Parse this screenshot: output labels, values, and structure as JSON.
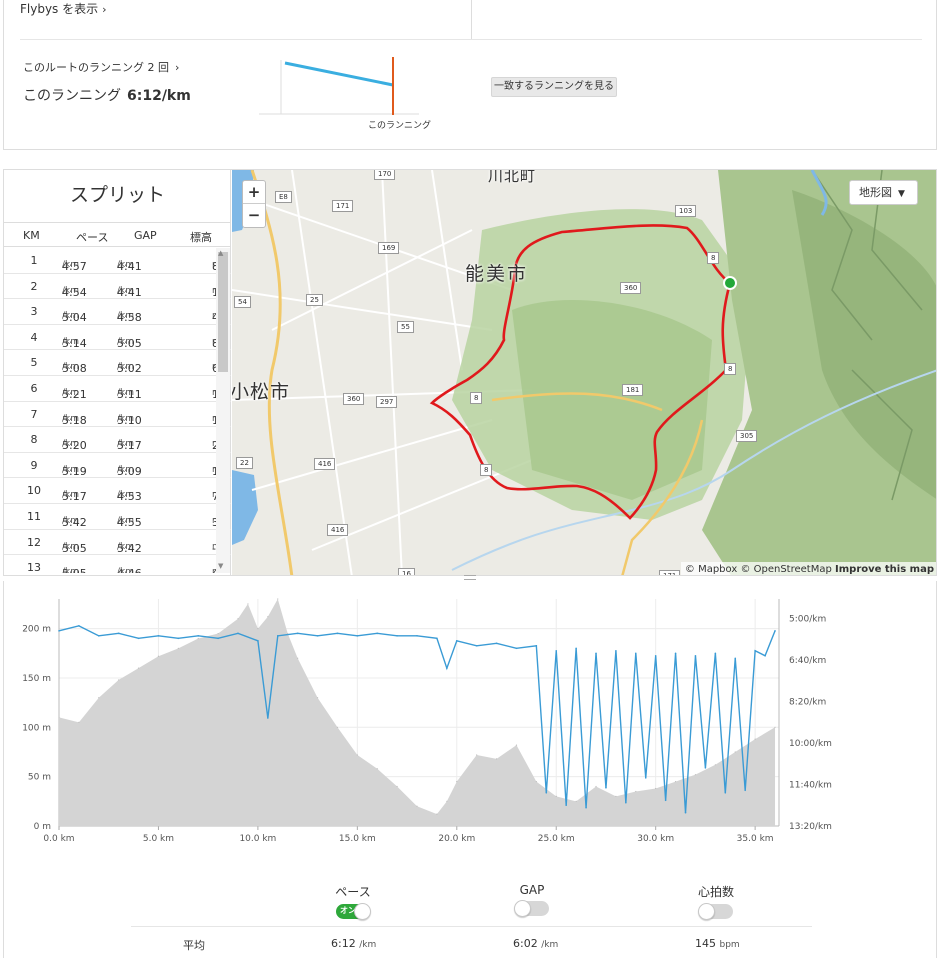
{
  "top": {
    "flybys_label": "Flybys を表示",
    "route_runs_label": "このルートのランニング 2 回",
    "this_run_label": "このランニング",
    "this_run_pace": "6:12/km",
    "mini_chart_label": "このランニング",
    "match_button": "一致するランニングを見る"
  },
  "splits": {
    "title": "スプリット",
    "headers": {
      "km": "KM",
      "pace": "ペース",
      "gap": "GAP",
      "elev": "標高"
    },
    "pace_unit": "/km",
    "elev_unit": "m",
    "rows": [
      {
        "km": "1",
        "pace": "4:57",
        "gap": "4:41",
        "elev": "8"
      },
      {
        "km": "2",
        "pace": "4:54",
        "gap": "4:41",
        "elev": "11"
      },
      {
        "km": "3",
        "pace": "5:04",
        "gap": "4:58",
        "elev": "4"
      },
      {
        "km": "4",
        "pace": "5:14",
        "gap": "5:05",
        "elev": "8"
      },
      {
        "km": "5",
        "pace": "5:08",
        "gap": "5:02",
        "elev": "6"
      },
      {
        "km": "6",
        "pace": "5:21",
        "gap": "5:11",
        "elev": "13"
      },
      {
        "km": "7",
        "pace": "5:18",
        "gap": "5:10",
        "elev": "11"
      },
      {
        "km": "8",
        "pace": "5:20",
        "gap": "5:17",
        "elev": "2"
      },
      {
        "km": "9",
        "pace": "5:19",
        "gap": "5:09",
        "elev": "11"
      },
      {
        "km": "10",
        "pace": "5:17",
        "gap": "4:53",
        "elev": "7"
      },
      {
        "km": "11",
        "pace": "5:42",
        "gap": "4:55",
        "elev": "38"
      },
      {
        "km": "12",
        "pace": "5:05",
        "gap": "5:42",
        "elev": "-49"
      },
      {
        "km": "13",
        "pace": "5:05",
        "gap": "4:46",
        "elev": "47"
      }
    ]
  },
  "map": {
    "zoom_in": "+",
    "zoom_out": "−",
    "terrain_button": "地形図",
    "attribution_mapbox": "© Mapbox",
    "attribution_osm": "© OpenStreetMap",
    "attribution_improve": "Improve this map",
    "places": {
      "kawakita": "川北町",
      "nomi": "能美市",
      "komatsu": "小松市"
    },
    "road_shields": [
      "170",
      "E8",
      "171",
      "103",
      "169",
      "25",
      "54",
      "55",
      "360",
      "360",
      "297",
      "181",
      "305",
      "22",
      "416",
      "416",
      "16",
      "171",
      "8",
      "8",
      "8",
      "8"
    ],
    "accent_route": "#e0191c",
    "start_marker": "#22a838"
  },
  "chart": {
    "left_axis_ticks": [
      "200 m",
      "150 m",
      "100 m",
      "50 m",
      "0 m"
    ],
    "right_axis_ticks": [
      "5:00/km",
      "6:40/km",
      "8:20/km",
      "10:00/km",
      "11:40/km",
      "13:20/km"
    ],
    "x_ticks": [
      "0.0 km",
      "5.0 km",
      "10.0 km",
      "15.0 km",
      "20.0 km",
      "25.0 km",
      "30.0 km",
      "35.0 km"
    ],
    "pace_color": "#3a9bd5",
    "elev_color": "#d4d4d4"
  },
  "chart_data": {
    "type": "area",
    "x_unit": "km",
    "xlim": [
      0,
      36.2
    ],
    "ylim_left": [
      0,
      230
    ],
    "ylim_right_pace_min_per_km": [
      13.333,
      4.222
    ],
    "series": [
      {
        "name": "",
        "axis": "left",
        "x": [
          0,
          1,
          2,
          3,
          4,
          5,
          6,
          7,
          8,
          9,
          9.5,
          10,
          10.5,
          11,
          11.5,
          12,
          13,
          14,
          15,
          16,
          17,
          18,
          19,
          19.5,
          20,
          21,
          22,
          23,
          24,
          25,
          26,
          27,
          28,
          29,
          30,
          31,
          32,
          33,
          34,
          35,
          36
        ],
        "values": [
          110,
          105,
          130,
          148,
          160,
          172,
          180,
          190,
          195,
          210,
          225,
          200,
          212,
          230,
          195,
          170,
          130,
          100,
          72,
          58,
          40,
          20,
          12,
          25,
          45,
          72,
          68,
          82,
          45,
          30,
          25,
          40,
          30,
          35,
          38,
          45,
          52,
          62,
          75,
          88,
          100
        ]
      },
      {
        "name": "",
        "axis": "right",
        "x": [
          0,
          1,
          2,
          3,
          4,
          5,
          6,
          7,
          8,
          9,
          10,
          10.5,
          11,
          12,
          13,
          14,
          15,
          16,
          17,
          18,
          19,
          19.5,
          20,
          21,
          22,
          23,
          24,
          24.5,
          25,
          25.5,
          26,
          26.5,
          27,
          27.5,
          28,
          28.5,
          29,
          29.5,
          30,
          30.5,
          31,
          31.5,
          32,
          32.5,
          33,
          33.5,
          34,
          34.5,
          35,
          35.5,
          36
        ],
        "values": [
          5.5,
          5.3,
          5.7,
          5.6,
          5.8,
          5.7,
          5.8,
          5.7,
          5.8,
          5.6,
          5.9,
          9.0,
          5.7,
          5.6,
          5.7,
          5.6,
          5.7,
          5.6,
          5.7,
          5.7,
          5.8,
          7.0,
          5.9,
          6.1,
          6.0,
          6.2,
          6.1,
          12.0,
          6.3,
          12.5,
          6.2,
          12.6,
          6.4,
          11.8,
          6.3,
          12.4,
          6.4,
          11.4,
          6.5,
          12.3,
          6.4,
          12.8,
          6.5,
          11.0,
          6.4,
          12.0,
          6.6,
          11.9,
          6.3,
          6.5,
          5.5
        ]
      }
    ]
  },
  "legend": {
    "pace_label": "ペース",
    "pace_toggle_text": "オン",
    "gap_label": "GAP",
    "hr_label": "心拍数",
    "avg_label": "平均",
    "avg_pace": "6:12",
    "avg_pace_unit": "/km",
    "avg_gap": "6:02",
    "avg_gap_unit": "/km",
    "avg_hr": "145",
    "avg_hr_unit": "bpm"
  }
}
